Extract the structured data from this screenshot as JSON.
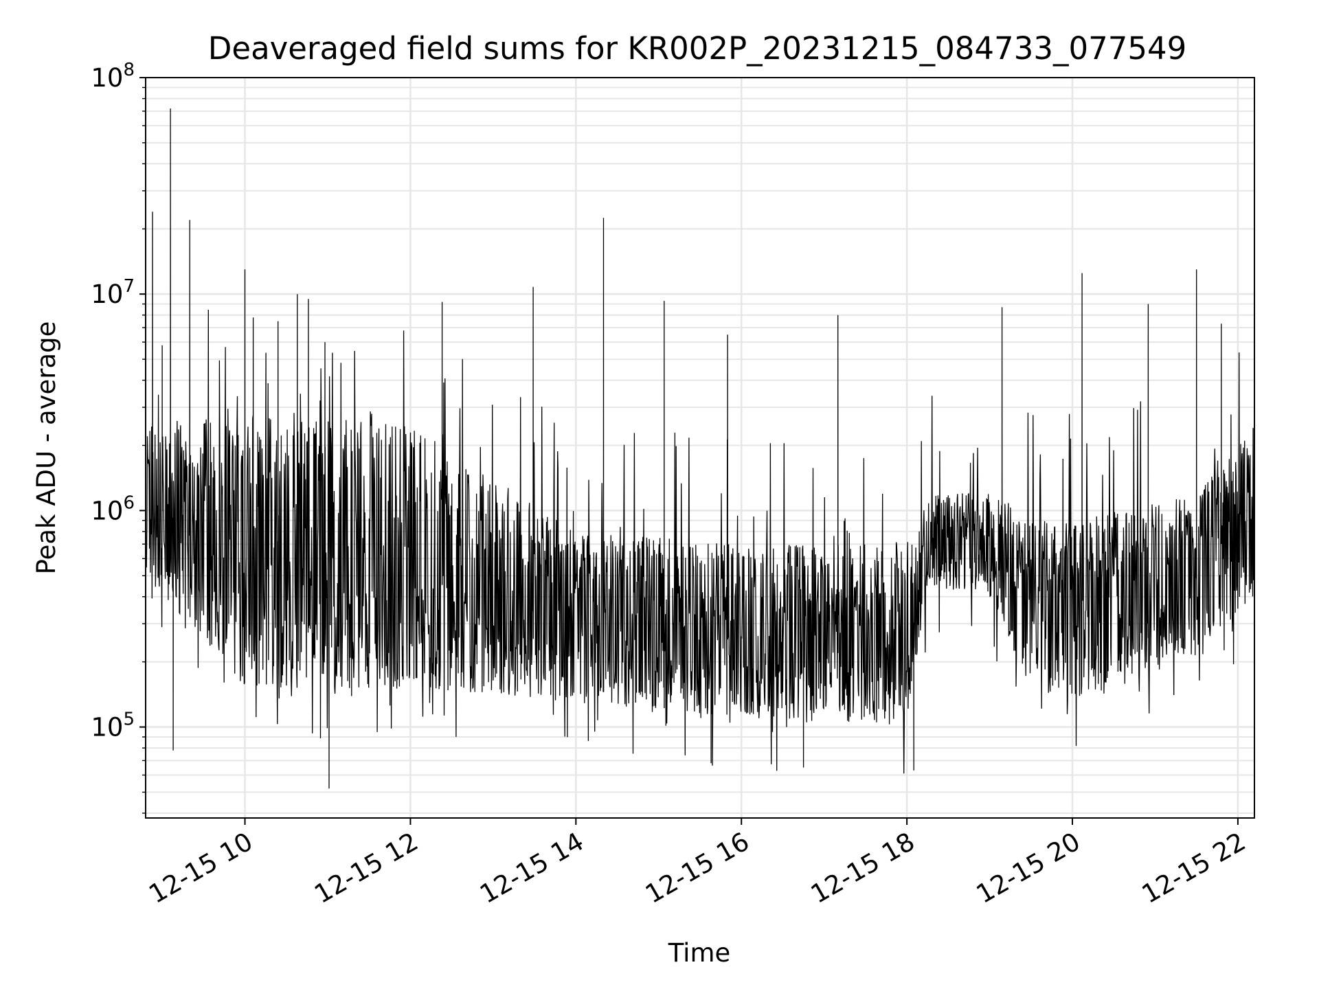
{
  "chart_data": {
    "type": "line",
    "title": "Deaveraged field sums for KR002P_20231215_084733_077549",
    "xlabel": "Time",
    "ylabel": "Peak ADU - average",
    "x_range": [
      "12-15 08:48",
      "12-15 22:12"
    ],
    "xlim_hours": [
      8.8,
      22.2
    ],
    "y_scale": "log",
    "ylim": [
      38000,
      100000000
    ],
    "grid": true,
    "legend": "none",
    "x_tick_labels": [
      "12-15 10",
      "12-15 12",
      "12-15 14",
      "12-15 16",
      "12-15 18",
      "12-15 20",
      "12-15 22"
    ],
    "x_tick_hours": [
      10,
      12,
      14,
      16,
      18,
      20,
      22
    ],
    "y_tick_labels": [
      {
        "base": "10",
        "exp": "5",
        "value": 100000
      },
      {
        "base": "10",
        "exp": "6",
        "value": 1000000
      },
      {
        "base": "10",
        "exp": "7",
        "value": 10000000
      },
      {
        "base": "10",
        "exp": "8",
        "value": 100000000
      }
    ],
    "series": [
      {
        "color": "#000000",
        "baseline_profile": [
          {
            "t": "12-15 08:48",
            "median": 1100000,
            "low": 500000,
            "high": 2500000
          },
          {
            "t": "12-15 10:00",
            "median": 600000,
            "low": 150000,
            "high": 3000000
          },
          {
            "t": "12-15 12:00",
            "median": 500000,
            "low": 150000,
            "high": 2500000
          },
          {
            "t": "12-15 14:00",
            "median": 300000,
            "low": 130000,
            "high": 800000
          },
          {
            "t": "12-15 16:00",
            "median": 250000,
            "low": 110000,
            "high": 700000
          },
          {
            "t": "12-15 18:00",
            "median": 200000,
            "low": 100000,
            "high": 700000
          },
          {
            "t": "12-15 18:15",
            "median": 700000,
            "low": 450000,
            "high": 1200000
          },
          {
            "t": "12-15 19:00",
            "median": 700000,
            "low": 400000,
            "high": 1200000
          },
          {
            "t": "12-15 19:30",
            "median": 400000,
            "low": 150000,
            "high": 900000
          },
          {
            "t": "12-15 20:00",
            "median": 400000,
            "low": 130000,
            "high": 900000
          },
          {
            "t": "12-15 21:30",
            "median": 500000,
            "low": 200000,
            "high": 1200000
          },
          {
            "t": "12-15 22:12",
            "median": 1100000,
            "low": 400000,
            "high": 2500000
          }
        ],
        "spikes": [
          {
            "t": "12-15 08:53",
            "value": 24000000
          },
          {
            "t": "12-15 09:06",
            "value": 72000000
          },
          {
            "t": "12-15 09:20",
            "value": 22000000
          },
          {
            "t": "12-15 09:00",
            "value": 5800000
          },
          {
            "t": "12-15 10:00",
            "value": 13000000
          },
          {
            "t": "12-15 10:06",
            "value": 7800000
          },
          {
            "t": "12-15 10:24",
            "value": 7500000
          },
          {
            "t": "12-15 10:38",
            "value": 10000000
          },
          {
            "t": "12-15 10:46",
            "value": 9500000
          },
          {
            "t": "12-15 10:58",
            "value": 6000000
          },
          {
            "t": "12-15 12:23",
            "value": 9200000
          },
          {
            "t": "12-15 13:29",
            "value": 10800000
          },
          {
            "t": "12-15 14:20",
            "value": 22500000
          },
          {
            "t": "12-15 15:04",
            "value": 9300000
          },
          {
            "t": "12-15 15:50",
            "value": 6500000
          },
          {
            "t": "12-15 17:10",
            "value": 8000000
          },
          {
            "t": "12-15 19:09",
            "value": 8700000
          },
          {
            "t": "12-15 20:07",
            "value": 12500000
          },
          {
            "t": "12-15 20:55",
            "value": 9000000
          },
          {
            "t": "12-15 21:30",
            "value": 13000000
          },
          {
            "t": "12-15 21:48",
            "value": 7300000
          },
          {
            "t": "12-15 11:01",
            "value": 52000
          },
          {
            "t": "12-15 09:08",
            "value": 78000
          },
          {
            "t": "12-15 18:05",
            "value": 63000
          },
          {
            "t": "12-15 16:45",
            "value": 65000
          },
          {
            "t": "12-15 15:38",
            "value": 68000
          }
        ]
      }
    ]
  }
}
